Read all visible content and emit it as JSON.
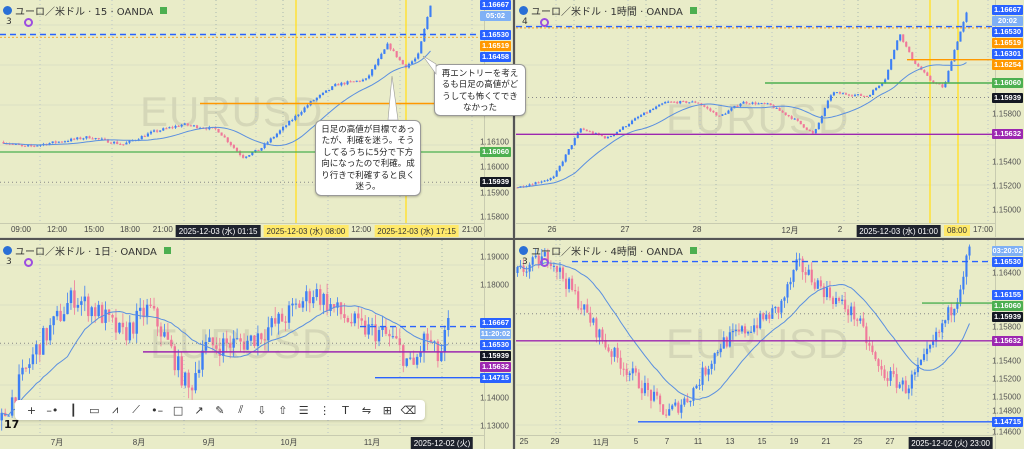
{
  "colors": {
    "background": "#e9ecc8",
    "up_candle": "#3d7ff5",
    "down_candle": "#f0789a",
    "ma_line": "#5a8fe0",
    "level_blue": "#2962ff",
    "level_orange": "#ff9800",
    "level_green": "#4caf50",
    "level_purple": "#9c27b0",
    "last_price": "#131722"
  },
  "panels": [
    {
      "title": "ユーロ／米ドル · 15 · OANDA",
      "indicator_count": "3",
      "watermark": "EURUSD",
      "price_ticks": [
        "1.16100",
        "1.16000",
        "1.15900",
        "1.15800"
      ],
      "price_badges": [
        {
          "label": "1.16667",
          "color": "#2962ff"
        },
        {
          "label": "05:02",
          "color": "#7fb0f5"
        },
        {
          "label": "1.16530",
          "color": "#2962ff"
        },
        {
          "label": "1.16519",
          "color": "#ff9800"
        },
        {
          "label": "1.16458",
          "color": "#2962ff"
        },
        {
          "label": "1.16060",
          "color": "#4caf50"
        },
        {
          "label": "1.15939",
          "color": "#131722"
        }
      ],
      "time_labels": [
        {
          "text": "09:00"
        },
        {
          "text": "12:00"
        },
        {
          "text": "15:00"
        },
        {
          "text": "18:00"
        },
        {
          "text": "21:00"
        },
        {
          "text": "2025-12-03 (水)  01:15",
          "highlight": "dark"
        },
        {
          "text": "2025-12-03 (水)  08:00",
          "highlight": "yellow"
        },
        {
          "text": "12:00"
        },
        {
          "text": "2025-12-03 (水)  17:15",
          "highlight": "yellow"
        },
        {
          "text": "21:00"
        }
      ]
    },
    {
      "title": "ユーロ／米ドル · 1時間 · OANDA",
      "indicator_count": "4",
      "watermark": "EURUSD",
      "price_ticks": [
        "1.16400",
        "1.15800",
        "1.15400",
        "1.15200",
        "1.15000"
      ],
      "price_badges": [
        {
          "label": "1.16667",
          "color": "#2962ff"
        },
        {
          "label": "20:02",
          "color": "#7fb0f5"
        },
        {
          "label": "1.16530",
          "color": "#2962ff"
        },
        {
          "label": "1.16519",
          "color": "#ff9800"
        },
        {
          "label": "1.16301",
          "color": "#2962ff"
        },
        {
          "label": "1.16254",
          "color": "#ff9800"
        },
        {
          "label": "1.16060",
          "color": "#4caf50"
        },
        {
          "label": "1.15939",
          "color": "#131722"
        },
        {
          "label": "1.15632",
          "color": "#9c27b0"
        }
      ],
      "time_labels": [
        {
          "text": "26"
        },
        {
          "text": "27"
        },
        {
          "text": "28"
        },
        {
          "text": "12月"
        },
        {
          "text": "2"
        },
        {
          "text": "2025-12-03 (水)  01:00",
          "highlight": "dark"
        },
        {
          "text": "08:00",
          "highlight": "yellow"
        },
        {
          "text": "17:00"
        }
      ]
    },
    {
      "title": "ユーロ／米ドル · 1日 · OANDA",
      "indicator_count": "3",
      "watermark": "EURUSD",
      "price_ticks": [
        "1.19000",
        "1.18000",
        "1.15000",
        "1.14000",
        "1.13000"
      ],
      "price_badges": [
        {
          "label": "1.16667",
          "color": "#2962ff"
        },
        {
          "label": "11:20:02",
          "color": "#7fb0f5"
        },
        {
          "label": "1.16530",
          "color": "#2962ff"
        },
        {
          "label": "1.15939",
          "color": "#131722"
        },
        {
          "label": "1.15632",
          "color": "#9c27b0"
        },
        {
          "label": "1.14715",
          "color": "#2962ff"
        }
      ],
      "time_labels": [
        {
          "text": "7月"
        },
        {
          "text": "8月"
        },
        {
          "text": "9月"
        },
        {
          "text": "10月"
        },
        {
          "text": "11月"
        },
        {
          "text": "2025-12-02 (火)",
          "highlight": "dark"
        }
      ]
    },
    {
      "title": "ユーロ／米ドル · 4時間 · OANDA",
      "indicator_count": "3",
      "watermark": "EURUSD",
      "price_ticks": [
        "1.16400",
        "1.15800",
        "1.15400",
        "1.15200",
        "1.15000",
        "1.14800",
        "1.14600"
      ],
      "price_badges": [
        {
          "label": "03:20:02",
          "color": "#7fb0f5"
        },
        {
          "label": "1.16530",
          "color": "#2962ff"
        },
        {
          "label": "1.16155",
          "color": "#2962ff"
        },
        {
          "label": "1.16060",
          "color": "#4caf50"
        },
        {
          "label": "1.15939",
          "color": "#131722"
        },
        {
          "label": "1.15632",
          "color": "#9c27b0"
        },
        {
          "label": "1.14715",
          "color": "#2962ff"
        }
      ],
      "time_labels": [
        {
          "text": "25"
        },
        {
          "text": "29"
        },
        {
          "text": "11月"
        },
        {
          "text": "5"
        },
        {
          "text": "7"
        },
        {
          "text": "11"
        },
        {
          "text": "13"
        },
        {
          "text": "15"
        },
        {
          "text": "19"
        },
        {
          "text": "21"
        },
        {
          "text": "25"
        },
        {
          "text": "27"
        },
        {
          "text": "2025-12-02 (火)  23:00",
          "highlight": "dark"
        }
      ]
    }
  ],
  "annotations": [
    {
      "text": "日足の高値が目標であったが、利確を迷う。そうしてるうちに5分で下方向になったので利確。成り行きで利確すると良く迷う。"
    },
    {
      "text": "再エントリーを考えるも日足の高値がどうしても怖くてできなかった"
    }
  ],
  "toolbar": {
    "tools": [
      "crosshair",
      "horizontal-ray",
      "vertical-line",
      "callout",
      "path",
      "trend-line",
      "horizontal-line",
      "rectangle",
      "arrow-line",
      "brush",
      "parallel-channel",
      "arrow-down",
      "arrow-up",
      "fib-retracement",
      "price-range",
      "text",
      "date-range",
      "grid-tool",
      "eraser"
    ]
  }
}
